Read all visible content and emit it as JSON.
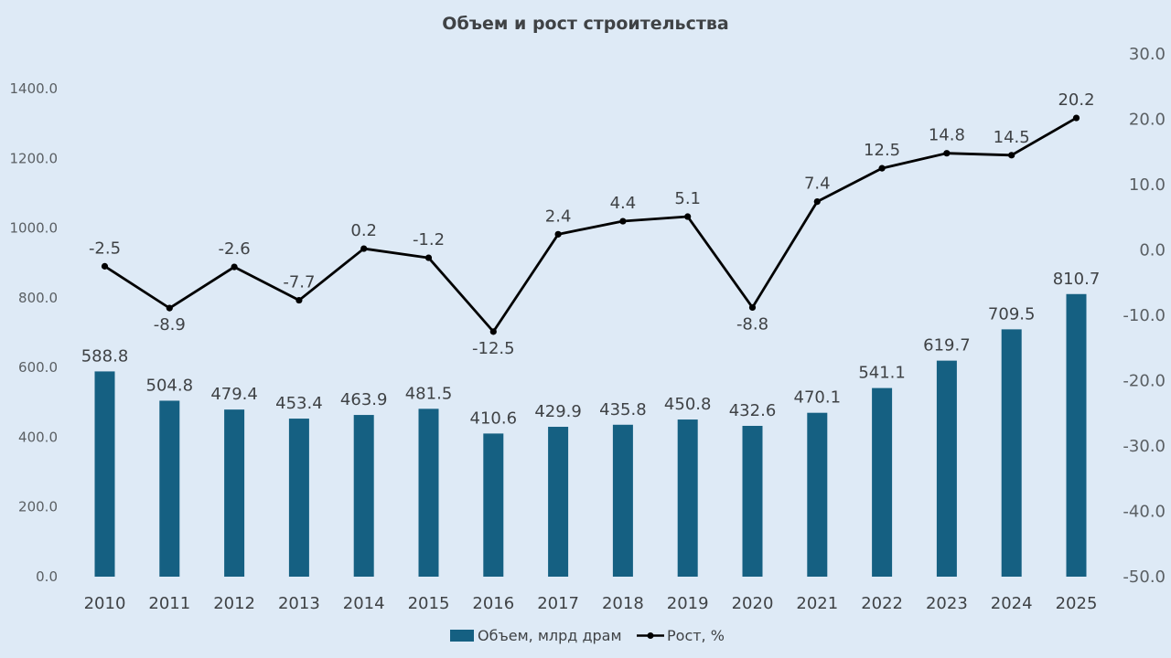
{
  "colors": {
    "background": "#deeaf6",
    "bar": "#156082",
    "line": "#000000",
    "highlight_label": "#e3000f",
    "text": "#3f4245"
  },
  "chart_data": {
    "type": "bar",
    "title": "Объем и рост строительства",
    "categories": [
      "2010",
      "2011",
      "2012",
      "2013",
      "2014",
      "2015",
      "2016",
      "2017",
      "2018",
      "2019",
      "2020",
      "2021",
      "2022",
      "2023",
      "2024",
      "2025"
    ],
    "series": [
      {
        "name": "Объем, млрд драм",
        "type": "bar",
        "axis": "left",
        "values": [
          588.8,
          504.8,
          479.4,
          453.4,
          463.9,
          481.5,
          410.6,
          429.9,
          435.8,
          450.8,
          432.6,
          470.1,
          541.1,
          619.7,
          709.5,
          810.7
        ],
        "labels": [
          "588.8",
          "504.8",
          "479.4",
          "453.4",
          "463.9",
          "481.5",
          "410.6",
          "429.9",
          "435.8",
          "450.8",
          "432.6",
          "470.1",
          "541.1",
          "619.7",
          "709.5",
          "810.7"
        ]
      },
      {
        "name": "Рост, %",
        "type": "line",
        "axis": "right",
        "values": [
          -2.5,
          -8.9,
          -2.6,
          -7.7,
          0.2,
          -1.2,
          -12.5,
          2.4,
          4.4,
          5.1,
          -8.8,
          7.4,
          12.5,
          14.8,
          14.5,
          20.2
        ],
        "labels": [
          "-2.5",
          "-8.9",
          "-2.6",
          "-7.7",
          "0.2",
          "-1.2",
          "-12.5",
          "2.4",
          "4.4",
          "5.1",
          "-8.8",
          "7.4",
          "12.5",
          "14.8",
          "14.5",
          "20.2"
        ]
      }
    ],
    "y_left": {
      "min": 0,
      "max": 1400,
      "ticks": [
        0,
        200,
        400,
        600,
        800,
        1000,
        1200,
        1400
      ],
      "tick_labels": [
        "0.0",
        "200.0",
        "400.0",
        "600.0",
        "800.0",
        "1000.0",
        "1200.0",
        "1400.0"
      ]
    },
    "y_right": {
      "min": -50,
      "max": 30,
      "ticks": [
        -50,
        -40,
        -30,
        -20,
        -10,
        0,
        10,
        20,
        30
      ],
      "tick_labels": [
        "-50.0",
        "-40.0",
        "-30.0",
        "-20.0",
        "-10.0",
        "0.0",
        "10.0",
        "20.0",
        "30.0"
      ]
    },
    "grid": false,
    "legend_position": "bottom-center",
    "highlighted_category": "2025"
  }
}
